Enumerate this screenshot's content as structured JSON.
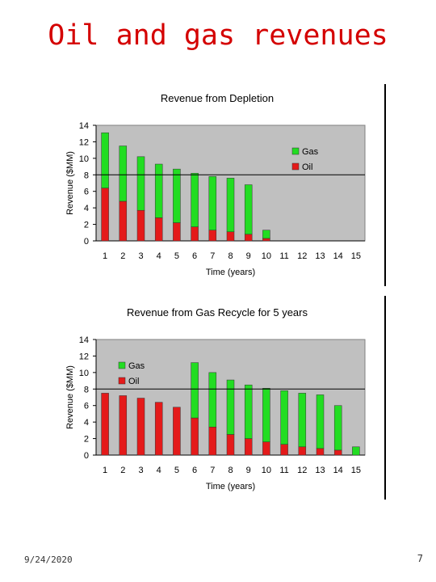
{
  "slide": {
    "title": "Oil and gas revenues",
    "date": "9/24/2020",
    "page_number": "7"
  },
  "colors": {
    "oil": "#e41a1a",
    "gas": "#22dd22",
    "plot_bg": "#c0c0c0",
    "title_red": "#d40000"
  },
  "chart_data": [
    {
      "type": "bar",
      "stacked": true,
      "title": "Revenue from Depletion",
      "xlabel": "Time (years)",
      "ylabel": "Revenue ($MM)",
      "ylim": [
        0,
        14
      ],
      "yticks": [
        "0",
        "2",
        "4",
        "6",
        "8",
        "10",
        "12",
        "14"
      ],
      "categories": [
        "1",
        "2",
        "3",
        "4",
        "5",
        "6",
        "7",
        "8",
        "9",
        "10",
        "11",
        "12",
        "13",
        "14",
        "15"
      ],
      "reference_line": 8,
      "legend_position": "top-right",
      "series": [
        {
          "name": "Oil",
          "values": [
            6.4,
            4.8,
            3.7,
            2.8,
            2.2,
            1.7,
            1.3,
            1.1,
            0.8,
            0.3,
            0,
            0,
            0,
            0,
            0
          ]
        },
        {
          "name": "Gas",
          "values": [
            6.7,
            6.7,
            6.5,
            6.5,
            6.5,
            6.5,
            6.5,
            6.5,
            6.0,
            1.0,
            0,
            0,
            0,
            0,
            0
          ]
        }
      ]
    },
    {
      "type": "bar",
      "stacked": true,
      "title": "Revenue from  Gas Recycle for 5 years",
      "xlabel": "Time (years)",
      "ylabel": "Revenue ($MM)",
      "ylim": [
        0,
        14
      ],
      "yticks": [
        "0",
        "2",
        "4",
        "6",
        "8",
        "10",
        "12",
        "14"
      ],
      "categories": [
        "1",
        "2",
        "3",
        "4",
        "5",
        "6",
        "7",
        "8",
        "9",
        "10",
        "11",
        "12",
        "13",
        "14",
        "15"
      ],
      "reference_line": 8,
      "legend_position": "top-left",
      "series": [
        {
          "name": "Oil",
          "values": [
            7.5,
            7.2,
            6.9,
            6.4,
            5.8,
            4.5,
            3.4,
            2.5,
            2.0,
            1.6,
            1.3,
            1.0,
            0.8,
            0.6,
            0
          ]
        },
        {
          "name": "Gas",
          "values": [
            0,
            0,
            0,
            0,
            0,
            6.7,
            6.6,
            6.6,
            6.5,
            6.5,
            6.5,
            6.5,
            6.5,
            5.4,
            1.0
          ]
        }
      ]
    }
  ]
}
